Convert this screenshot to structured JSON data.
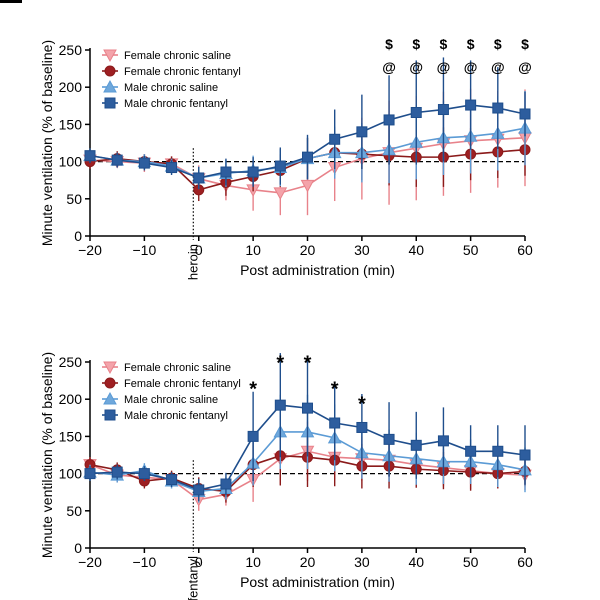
{
  "colors": {
    "female_saline": "#e8828a",
    "female_fentanyl": "#8b1a1a",
    "male_saline": "#5b9bd5",
    "male_fentanyl": "#1f4e8c",
    "reference_line": "#000000"
  },
  "chart_data": [
    {
      "type": "line",
      "ylabel": "Minute ventilation (% of baseline)",
      "xlabel": "Post administration (min)",
      "xlim": [
        -20,
        60
      ],
      "ylim": [
        0,
        250
      ],
      "xticks": [
        -20,
        -10,
        0,
        10,
        20,
        30,
        40,
        50,
        60
      ],
      "xtick_labels": [
        "−20",
        "−10",
        "0",
        "10",
        "20",
        "30",
        "40",
        "50",
        "60"
      ],
      "yticks": [
        0,
        50,
        100,
        150,
        200,
        250
      ],
      "ytick_labels": [
        "0",
        "50",
        "100",
        "150",
        "200",
        "250"
      ],
      "reference_y": 100,
      "event_x": -1,
      "event_label": "heroin",
      "legend_position": "top-left",
      "x": [
        -20,
        -15,
        -10,
        -5,
        0,
        5,
        10,
        15,
        20,
        25,
        30,
        35,
        40,
        45,
        50,
        55,
        60
      ],
      "series": [
        {
          "name": "Female chronic saline",
          "color_key": "female_saline",
          "marker": "triangle-down",
          "values": [
            102,
            100,
            98,
            97,
            77,
            68,
            62,
            58,
            68,
            92,
            104,
            112,
            118,
            124,
            128,
            130,
            132
          ],
          "errors": [
            10,
            8,
            12,
            10,
            18,
            20,
            28,
            30,
            40,
            45,
            55,
            70,
            70,
            70,
            70,
            65,
            65
          ]
        },
        {
          "name": "Female chronic fentanyl",
          "color_key": "female_fentanyl",
          "marker": "circle",
          "values": [
            100,
            104,
            100,
            97,
            62,
            72,
            80,
            88,
            104,
            112,
            110,
            108,
            106,
            106,
            110,
            113,
            116
          ],
          "errors": [
            10,
            10,
            10,
            10,
            15,
            18,
            20,
            22,
            28,
            30,
            35,
            40,
            40,
            40,
            35,
            35,
            35
          ]
        },
        {
          "name": "Male chronic saline",
          "color_key": "male_saline",
          "marker": "triangle-up",
          "values": [
            108,
            102,
            100,
            94,
            78,
            84,
            88,
            92,
            104,
            112,
            112,
            116,
            126,
            132,
            134,
            138,
            145
          ],
          "errors": [
            8,
            10,
            10,
            10,
            15,
            18,
            20,
            25,
            28,
            35,
            40,
            45,
            50,
            50,
            50,
            50,
            50
          ]
        },
        {
          "name": "Male chronic fentanyl",
          "color_key": "male_fentanyl",
          "marker": "square",
          "values": [
            108,
            102,
            98,
            92,
            78,
            86,
            86,
            94,
            106,
            130,
            140,
            156,
            166,
            170,
            176,
            172,
            164
          ],
          "errors": [
            10,
            10,
            10,
            10,
            15,
            18,
            20,
            25,
            30,
            40,
            50,
            60,
            70,
            70,
            60,
            55,
            30
          ]
        }
      ],
      "annotations": [
        {
          "x": 35,
          "lines": [
            "$",
            "@"
          ]
        },
        {
          "x": 40,
          "lines": [
            "$",
            "@"
          ]
        },
        {
          "x": 45,
          "lines": [
            "$",
            "@"
          ]
        },
        {
          "x": 50,
          "lines": [
            "$",
            "@"
          ]
        },
        {
          "x": 55,
          "lines": [
            "$",
            "@"
          ]
        },
        {
          "x": 60,
          "lines": [
            "$",
            "@"
          ]
        }
      ]
    },
    {
      "type": "line",
      "ylabel": "Minute ventilation (% of baseline)",
      "xlabel": "Post administration (min)",
      "xlim": [
        -20,
        60
      ],
      "ylim": [
        0,
        250
      ],
      "xticks": [
        -20,
        -10,
        0,
        10,
        20,
        30,
        40,
        50,
        60
      ],
      "xtick_labels": [
        "−20",
        "−10",
        "0",
        "10",
        "20",
        "30",
        "40",
        "50",
        "60"
      ],
      "yticks": [
        0,
        50,
        100,
        150,
        200,
        250
      ],
      "ytick_labels": [
        "0",
        "50",
        "100",
        "150",
        "200",
        "250"
      ],
      "reference_y": 100,
      "event_x": -1,
      "event_label": "fentanyl",
      "legend_position": "top-left",
      "x": [
        -20,
        -15,
        -10,
        -5,
        0,
        5,
        10,
        15,
        20,
        25,
        30,
        35,
        40,
        45,
        50,
        55,
        60
      ],
      "series": [
        {
          "name": "Female chronic saline",
          "color_key": "female_saline",
          "marker": "triangle-down",
          "values": [
            112,
            98,
            95,
            92,
            65,
            72,
            92,
            120,
            130,
            122,
            120,
            118,
            112,
            108,
            104,
            100,
            98
          ],
          "errors": [
            10,
            10,
            10,
            10,
            15,
            15,
            30,
            35,
            40,
            30,
            30,
            30,
            25,
            25,
            25,
            20,
            20
          ]
        },
        {
          "name": "Female chronic fentanyl",
          "color_key": "female_fentanyl",
          "marker": "circle",
          "values": [
            112,
            105,
            90,
            94,
            80,
            76,
            112,
            124,
            122,
            118,
            110,
            110,
            106,
            104,
            102,
            100,
            103
          ],
          "errors": [
            10,
            10,
            10,
            10,
            15,
            15,
            30,
            40,
            40,
            35,
            30,
            30,
            25,
            25,
            25,
            20,
            20
          ]
        },
        {
          "name": "Male chronic saline",
          "color_key": "male_saline",
          "marker": "triangle-up",
          "values": [
            102,
            98,
            104,
            90,
            76,
            80,
            114,
            156,
            156,
            148,
            128,
            124,
            120,
            116,
            116,
            112,
            105
          ],
          "errors": [
            10,
            10,
            10,
            10,
            15,
            15,
            30,
            50,
            50,
            45,
            35,
            35,
            35,
            30,
            30,
            30,
            30
          ]
        },
        {
          "name": "Male chronic fentanyl",
          "color_key": "male_fentanyl",
          "marker": "square",
          "values": [
            100,
            102,
            100,
            92,
            78,
            86,
            150,
            192,
            188,
            168,
            162,
            146,
            138,
            144,
            130,
            130,
            125
          ],
          "errors": [
            10,
            10,
            10,
            10,
            15,
            15,
            60,
            70,
            65,
            50,
            45,
            50,
            45,
            45,
            35,
            35,
            40
          ]
        }
      ],
      "annotations": [
        {
          "x": 10,
          "lines": [
            "*"
          ]
        },
        {
          "x": 15,
          "lines": [
            "*"
          ]
        },
        {
          "x": 20,
          "lines": [
            "*"
          ]
        },
        {
          "x": 25,
          "lines": [
            "*"
          ]
        },
        {
          "x": 30,
          "lines": [
            "*"
          ]
        }
      ]
    }
  ]
}
